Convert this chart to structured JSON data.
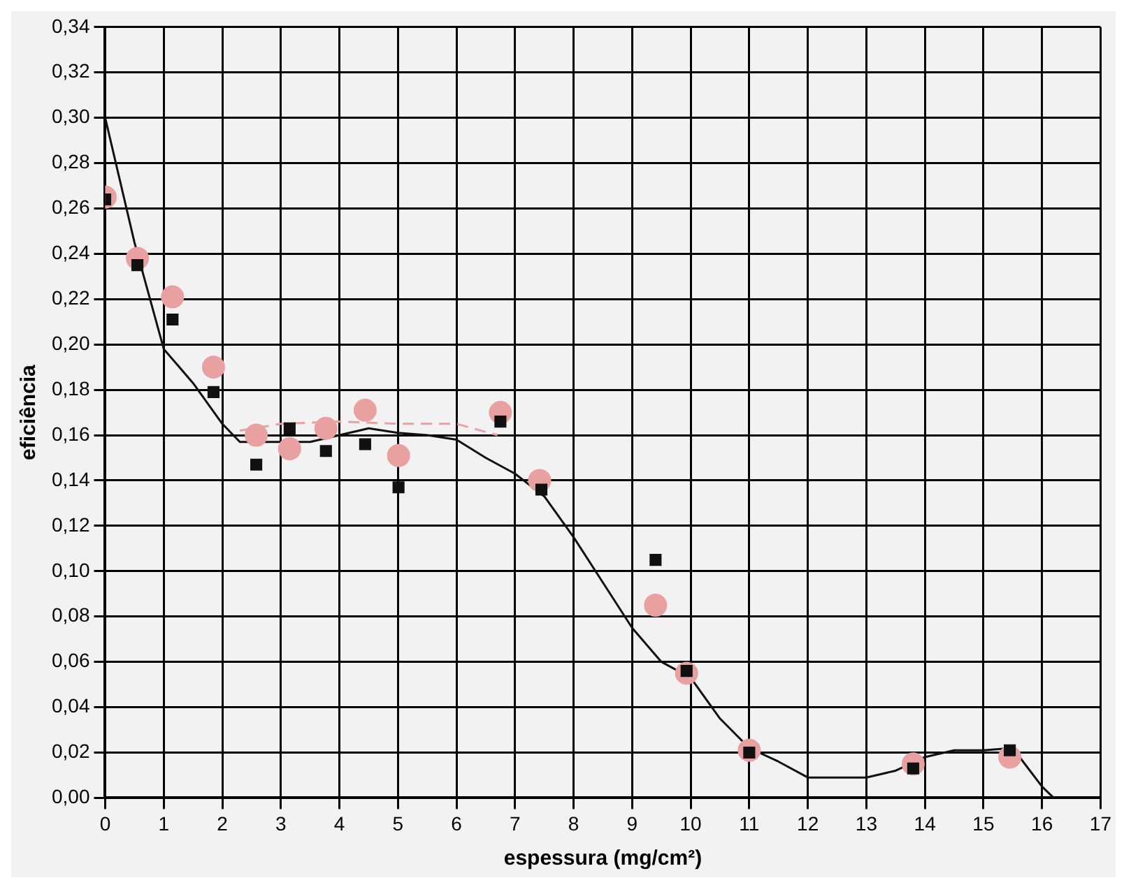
{
  "chart_data": {
    "type": "scatter",
    "xlabel": "espessura (mg/cm²)",
    "ylabel": "eficiência",
    "xlim": [
      0,
      17
    ],
    "xticks": [
      0,
      1,
      2,
      3,
      4,
      5,
      6,
      7,
      8,
      9,
      10,
      11,
      12,
      13,
      14,
      15,
      16,
      17
    ],
    "ylim": [
      0,
      0.34
    ],
    "yticks": [
      {
        "value": 0,
        "label": "0,00"
      },
      {
        "value": 0.02,
        "label": "0,02"
      },
      {
        "value": 0.04,
        "label": "0,04"
      },
      {
        "value": 0.06,
        "label": "0,06"
      },
      {
        "value": 0.08,
        "label": "0,08"
      },
      {
        "value": 0.1,
        "label": "0,10"
      },
      {
        "value": 0.12,
        "label": "0,12"
      },
      {
        "value": 0.14,
        "label": "0,14"
      },
      {
        "value": 0.16,
        "label": "0,16"
      },
      {
        "value": 0.18,
        "label": "0,18"
      },
      {
        "value": 0.2,
        "label": "0,20"
      },
      {
        "value": 0.22,
        "label": "0,22"
      },
      {
        "value": 0.24,
        "label": "0,24"
      },
      {
        "value": 0.26,
        "label": "0,26"
      },
      {
        "value": 0.28,
        "label": "0,28"
      },
      {
        "value": 0.3,
        "label": "0,30"
      },
      {
        "value": 0.32,
        "label": "0,32"
      },
      {
        "value": 0.34,
        "label": "0,34"
      }
    ],
    "grid": true,
    "legend": false,
    "series": [
      {
        "marker": "square",
        "color": "#111111",
        "x": [
          0,
          0.55,
          1.15,
          1.85,
          2.58,
          3.15,
          3.77,
          4.44,
          5.01,
          6.75,
          7.45,
          9.4,
          9.93,
          11,
          13.8,
          15.45
        ],
        "values": [
          0.264,
          0.235,
          0.211,
          0.179,
          0.147,
          0.163,
          0.153,
          0.156,
          0.137,
          0.166,
          0.136,
          0.105,
          0.056,
          0.02,
          0.013,
          0.021
        ]
      },
      {
        "marker": "circle",
        "color": "#e8a0a0",
        "x": [
          0,
          0.55,
          1.15,
          1.85,
          2.58,
          3.15,
          3.77,
          4.44,
          5.01,
          6.75,
          7.42,
          9.4,
          9.93,
          11,
          13.8,
          15.45
        ],
        "values": [
          0.265,
          0.238,
          0.221,
          0.19,
          0.16,
          0.154,
          0.163,
          0.171,
          0.151,
          0.17,
          0.14,
          0.085,
          0.055,
          0.021,
          0.015,
          0.018
        ]
      },
      {
        "type": "line",
        "marker": "none",
        "line_style": "solid",
        "color": "#111111",
        "x": [
          0,
          0.5,
          1,
          1.5,
          2,
          2.3,
          3,
          3.5,
          4,
          4.5,
          5,
          5.5,
          6,
          6.5,
          7,
          7.5,
          8,
          8.5,
          9,
          9.5,
          10,
          10.5,
          11,
          11.5,
          12,
          12.5,
          13,
          13.5,
          14,
          14.5,
          15,
          15.5,
          16,
          16.2
        ],
        "values": [
          0.3,
          0.245,
          0.198,
          0.183,
          0.165,
          0.157,
          0.157,
          0.157,
          0.16,
          0.163,
          0.161,
          0.16,
          0.158,
          0.15,
          0.143,
          0.133,
          0.115,
          0.095,
          0.075,
          0.06,
          0.053,
          0.035,
          0.022,
          0.016,
          0.009,
          0.009,
          0.009,
          0.012,
          0.018,
          0.021,
          0.021,
          0.022,
          0.005,
          0
        ]
      },
      {
        "type": "line",
        "marker": "none",
        "line_style": "dashed",
        "color": "#e8a0a0",
        "x": [
          2.3,
          3,
          4,
          5,
          6,
          6.7
        ],
        "values": [
          0.162,
          0.165,
          0.166,
          0.165,
          0.165,
          0.16
        ]
      }
    ]
  }
}
